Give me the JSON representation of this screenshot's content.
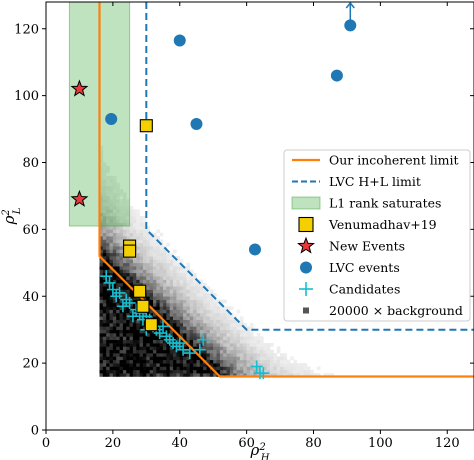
{
  "chart_data": {
    "type": "scatter",
    "xlabel": "ρ²H",
    "ylabel": "ρ²L",
    "xlim": [
      0,
      128
    ],
    "ylim": [
      0,
      128
    ],
    "xticks": [
      0,
      20,
      40,
      60,
      80,
      100,
      120
    ],
    "yticks": [
      0,
      20,
      40,
      60,
      80,
      100,
      120
    ],
    "grid": false,
    "legend_position": "right",
    "colors": {
      "incoherent_limit": "#ff7f0e",
      "lvc_limit": "#1f77b4",
      "l1_band": "#2ca02c",
      "venumadhav": "#f5d000",
      "new_events": "#e8393a",
      "lvc_events": "#1f77b4",
      "candidates": "#17becf",
      "background": "#000000"
    },
    "legend": [
      {
        "key": "incoherent",
        "label": "Our incoherent limit"
      },
      {
        "key": "lvc_limit",
        "label": "LVC H+L limit"
      },
      {
        "key": "l1_band",
        "label": "L1 rank saturates"
      },
      {
        "key": "venumadhav",
        "label": "Venumadhav+19"
      },
      {
        "key": "new_events",
        "label": "New Events"
      },
      {
        "key": "lvc_events",
        "label": "LVC events"
      },
      {
        "key": "candidates",
        "label": "Candidates"
      },
      {
        "key": "background",
        "label": "20000 × background"
      }
    ],
    "incoherent_limit": [
      [
        16,
        128
      ],
      [
        16,
        52
      ],
      [
        52,
        16
      ],
      [
        128,
        16
      ]
    ],
    "lvc_limit": [
      [
        30,
        128
      ],
      [
        30,
        60
      ],
      [
        60,
        30
      ],
      [
        128,
        30
      ]
    ],
    "l1_band": {
      "x": [
        7,
        25
      ],
      "y": [
        61,
        128
      ]
    },
    "venumadhav": [
      [
        30,
        91
      ],
      [
        25,
        55
      ],
      [
        25,
        53.5
      ],
      [
        28,
        41.5
      ],
      [
        29,
        37
      ],
      [
        31.5,
        31.5
      ]
    ],
    "new_events": [
      [
        10,
        102
      ],
      [
        10,
        69
      ]
    ],
    "lvc_events": [
      [
        40,
        116.5
      ],
      [
        91,
        121
      ],
      [
        87,
        106
      ],
      [
        19.5,
        93
      ],
      [
        45,
        91.5
      ],
      [
        62.5,
        54
      ]
    ],
    "lvc_arrow": {
      "x": 91,
      "y": [
        122,
        128
      ]
    },
    "candidates": [
      [
        18,
        46
      ],
      [
        19,
        44
      ],
      [
        20,
        42
      ],
      [
        21,
        40
      ],
      [
        22,
        41
      ],
      [
        24,
        39
      ],
      [
        23,
        37
      ],
      [
        25,
        38
      ],
      [
        27,
        36
      ],
      [
        26,
        34
      ],
      [
        28,
        35
      ],
      [
        29,
        33
      ],
      [
        30,
        34
      ],
      [
        30,
        30
      ],
      [
        31,
        33
      ],
      [
        32,
        31
      ],
      [
        33,
        30
      ],
      [
        34,
        29
      ],
      [
        35,
        31
      ],
      [
        36,
        28
      ],
      [
        37,
        27
      ],
      [
        38,
        26
      ],
      [
        39,
        25
      ],
      [
        40,
        26
      ],
      [
        41,
        24
      ],
      [
        43,
        23
      ],
      [
        46,
        24
      ],
      [
        47,
        27
      ],
      [
        63,
        19
      ],
      [
        64,
        17
      ],
      [
        65,
        17
      ]
    ]
  }
}
